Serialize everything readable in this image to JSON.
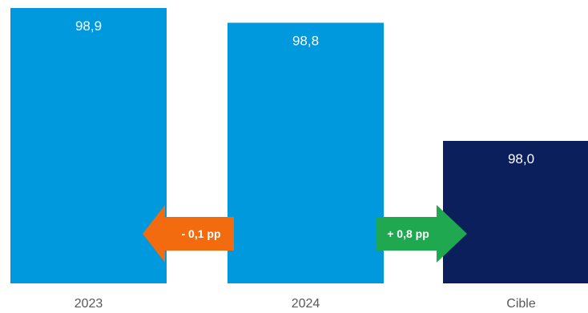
{
  "chart_data": {
    "type": "bar",
    "categories": [
      "2023",
      "2024",
      "Cible"
    ],
    "values": [
      98.9,
      98.8,
      98.0
    ],
    "value_labels": [
      "98,9",
      "98,8",
      "98,0"
    ],
    "bar_colors": [
      "#0099DD",
      "#0099DD",
      "#0A1F5C"
    ],
    "annotations": [
      {
        "text": "- 0,1 pp",
        "direction": "left",
        "color": "#F26B0F"
      },
      {
        "text": "+ 0,8 pp",
        "direction": "right",
        "color": "#1FA84F"
      }
    ],
    "legend": "none",
    "grid": false
  }
}
